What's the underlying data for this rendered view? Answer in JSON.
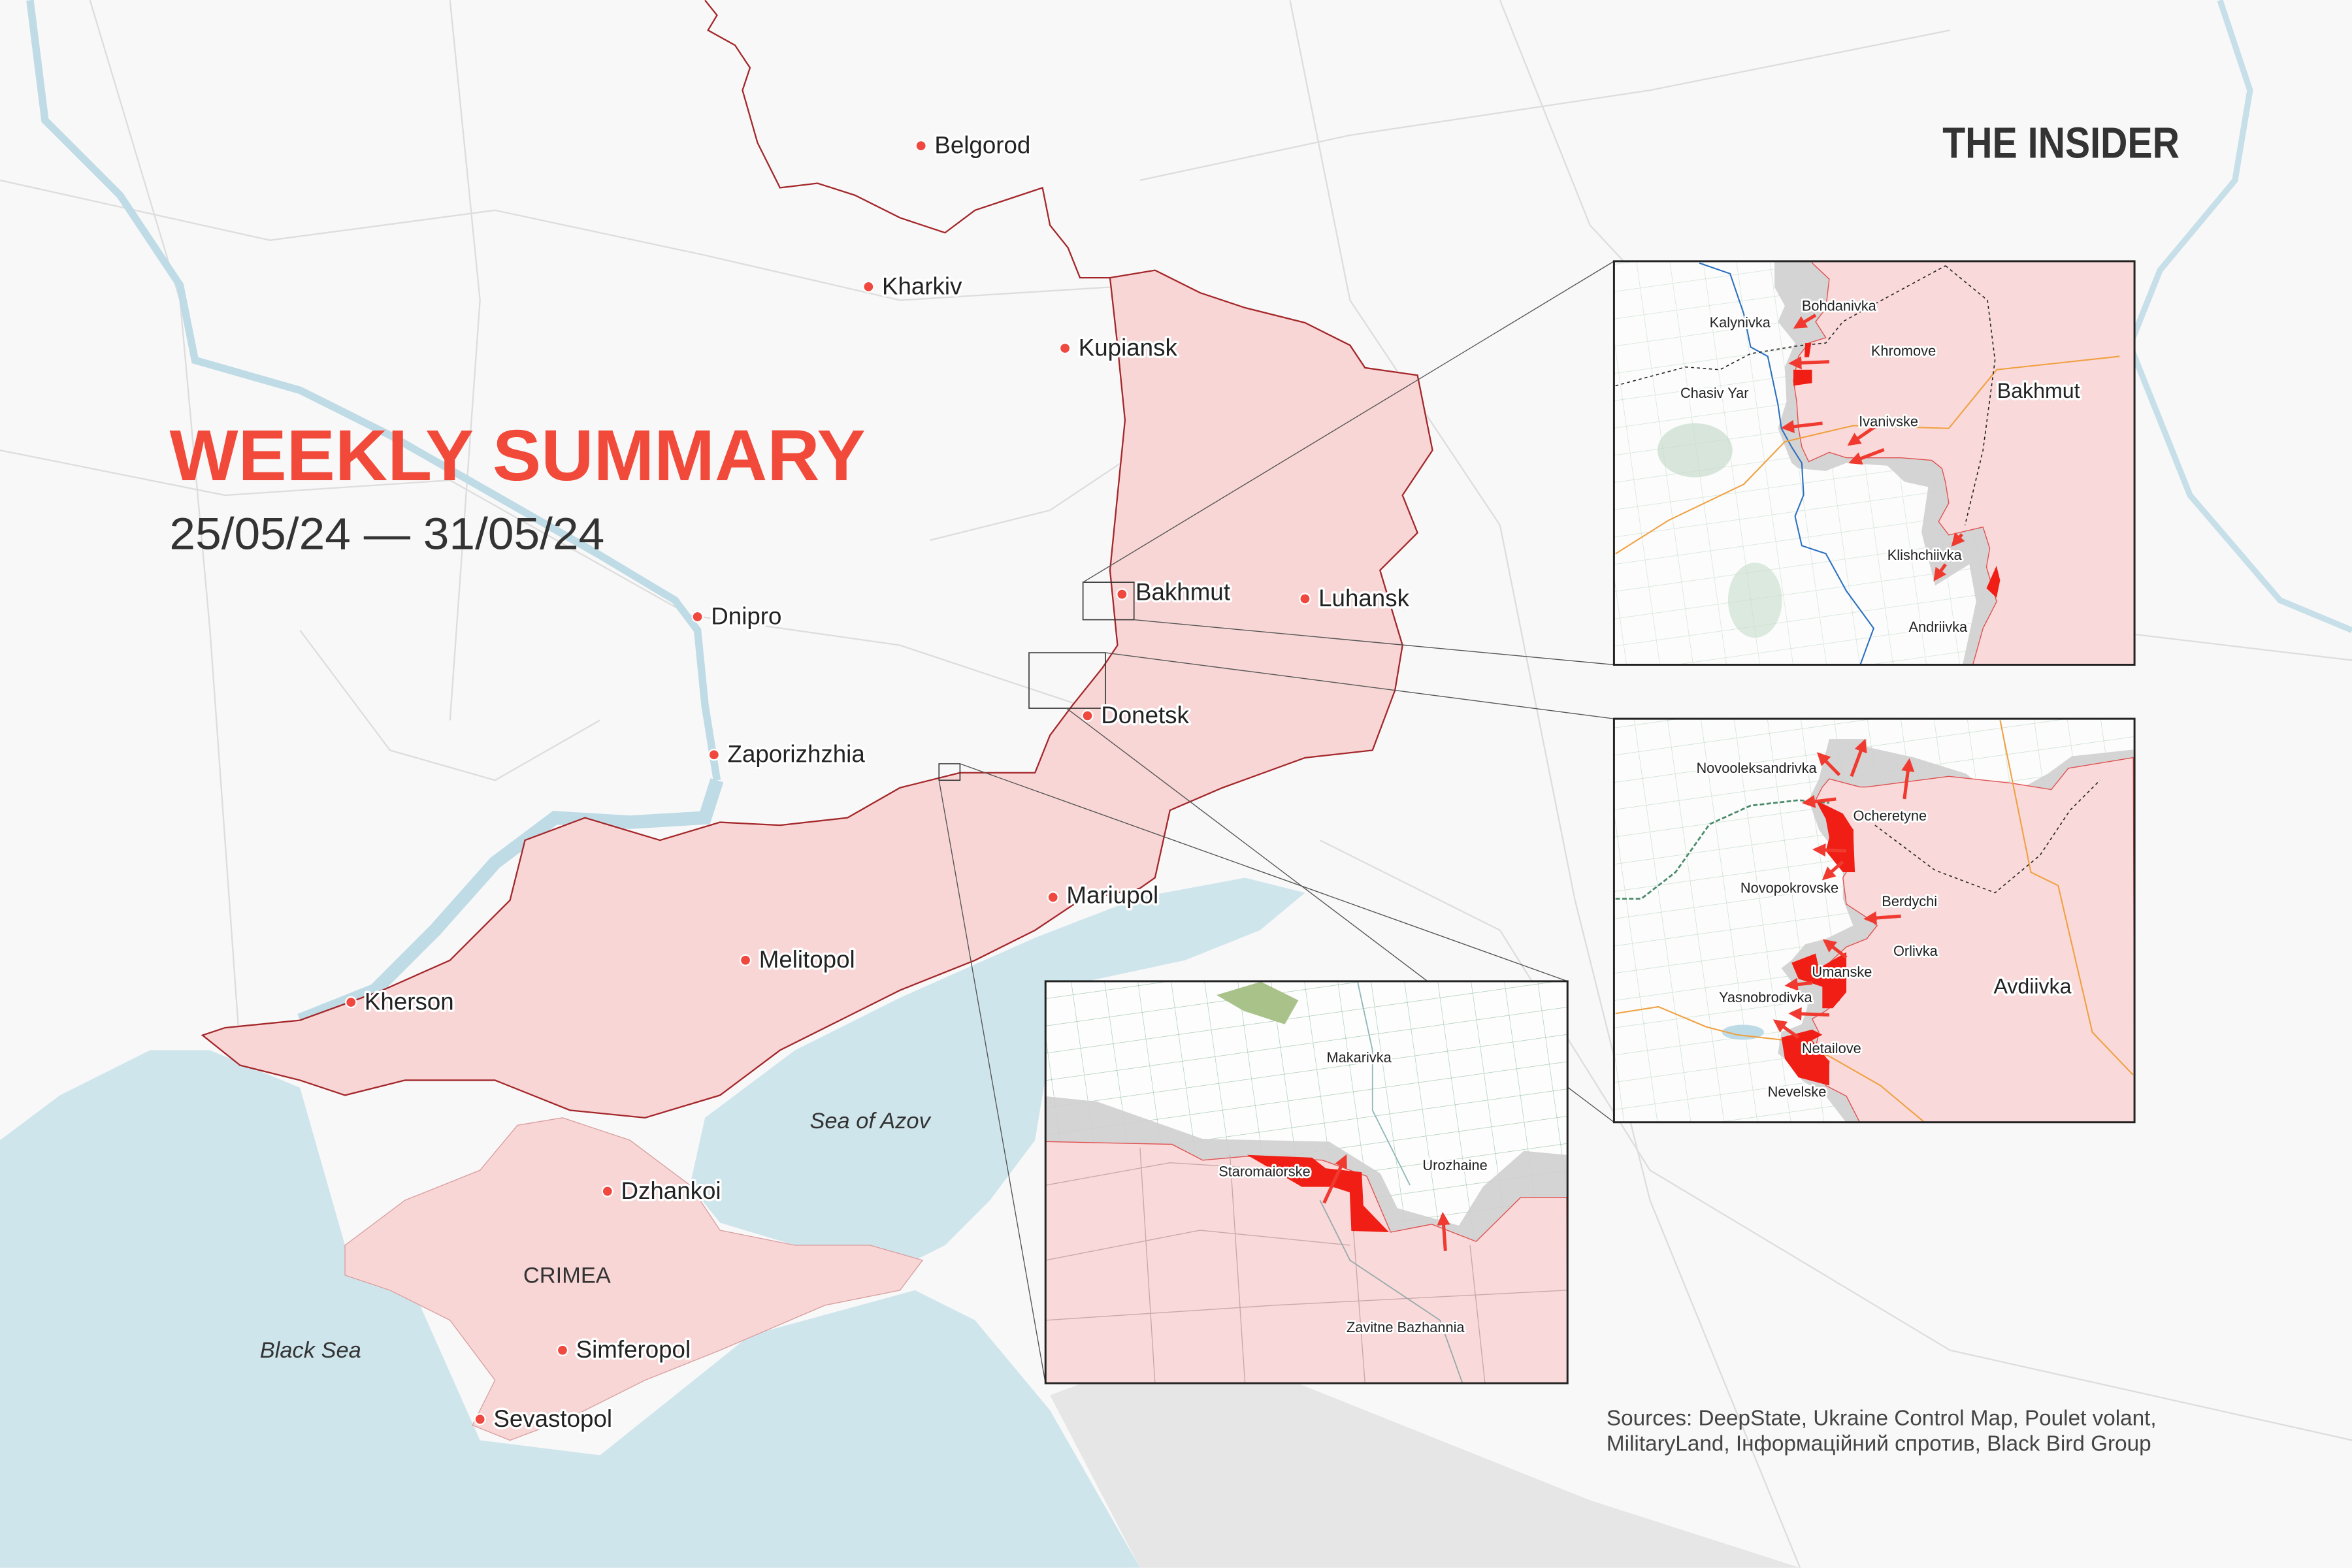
{
  "header": {
    "title": "WEEKLY SUMMARY",
    "date_range": "25/05/24 — 31/05/24",
    "logo": "THE INSIDER"
  },
  "colors": {
    "title": "#f24a3a",
    "occupied": "#f9d6d6",
    "border": "#a3272a",
    "advance": "#f01e14",
    "contested": "#cfcfcf",
    "sea": "#cfe5ec",
    "city_marker": "#f0483e"
  },
  "cities": [
    {
      "name": "Belgorod"
    },
    {
      "name": "Kharkiv"
    },
    {
      "name": "Kupiansk"
    },
    {
      "name": "Bakhmut"
    },
    {
      "name": "Luhansk"
    },
    {
      "name": "Dnipro"
    },
    {
      "name": "Donetsk"
    },
    {
      "name": "Zaporizhzhia"
    },
    {
      "name": "Mariupol"
    },
    {
      "name": "Melitopol"
    },
    {
      "name": "Kherson"
    },
    {
      "name": "Dzhankoi"
    },
    {
      "name": "Simferopol"
    },
    {
      "name": "Sevastopol"
    }
  ],
  "regions": {
    "crimea": "CRIMEA",
    "black_sea": "Black Sea",
    "sea_of_azov": "Sea of Azov"
  },
  "insets": {
    "bakhmut": {
      "labels": [
        "Kalynivka",
        "Bohdanivka",
        "Khromove",
        "Chasiv Yar",
        "Bakhmut",
        "Ivanivske",
        "Klishchiivka",
        "Andriivka"
      ]
    },
    "avdiivka": {
      "labels": [
        "Novooleksandrivka",
        "Ocheretyne",
        "Novopokrovske",
        "Berdychi",
        "Orlivka",
        "Umanske",
        "Avdiivka",
        "Yasnobrodivka",
        "Netailove",
        "Nevelske"
      ]
    },
    "staromaiorske": {
      "labels": [
        "Makarivka",
        "Staromaiorske",
        "Urozhaine",
        "Zavitne Bazhannia"
      ]
    }
  },
  "sources": {
    "line1": "Sources: DeepState, Ukraine Control Map, Poulet volant,",
    "line2": "MilitaryLand, Інформаційний спротив, Black Bird Group"
  }
}
